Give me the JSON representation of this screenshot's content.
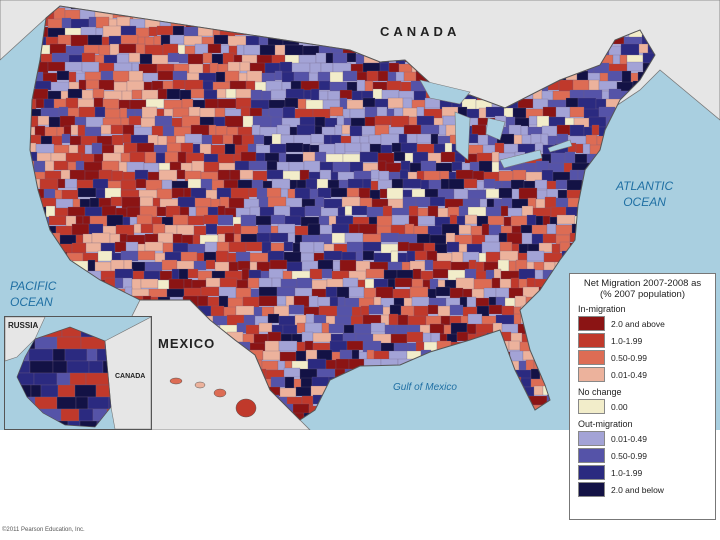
{
  "labels": {
    "canada": "CANADA",
    "atlantic_line1": "ATLANTIC",
    "atlantic_line2": "OCEAN",
    "pacific_line1": "PACIFIC",
    "pacific_line2": "OCEAN",
    "mexico": "MEXICO",
    "gulf": "Gulf of Mexico",
    "russia": "RUSSIA",
    "inset_canada": "CANADA"
  },
  "legend": {
    "title_line1": "Net Migration 2007-2008 as",
    "title_line2": "(% 2007 population)",
    "groups": [
      {
        "heading": "In-migration",
        "items": [
          {
            "label": "2.0 and above",
            "color": "#8b1414"
          },
          {
            "label": "1.0-1.99",
            "color": "#c0392b"
          },
          {
            "label": "0.50-0.99",
            "color": "#dd6c54"
          },
          {
            "label": "0.01-0.49",
            "color": "#ecb29c"
          }
        ]
      },
      {
        "heading": "No change",
        "items": [
          {
            "label": "0.00",
            "color": "#f2edca"
          }
        ]
      },
      {
        "heading": "Out-migration",
        "items": [
          {
            "label": "0.01-0.49",
            "color": "#a3a3d6"
          },
          {
            "label": "0.50-0.99",
            "color": "#5553a8"
          },
          {
            "label": "1.0-1.99",
            "color": "#2b2a80"
          },
          {
            "label": "2.0 and below",
            "color": "#131245"
          }
        ]
      }
    ]
  },
  "copyright": "©2011 Pearson Education, Inc."
}
